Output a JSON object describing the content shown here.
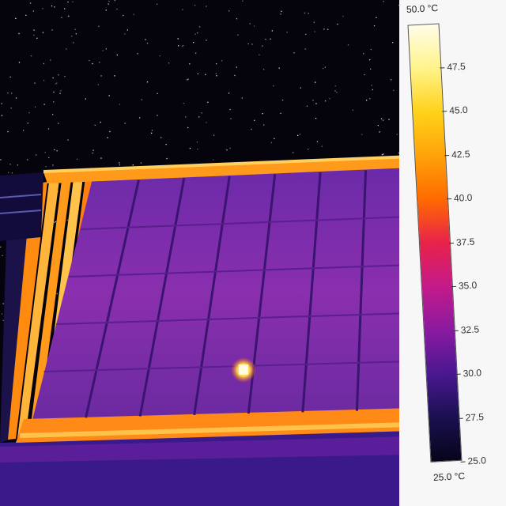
{
  "scale": {
    "max_label": "50.0 °C",
    "min_label": "25.0 °C",
    "ticks": [
      "47.5",
      "45.0",
      "42.5",
      "40.0",
      "37.5",
      "35.0",
      "32.5",
      "30.0",
      "27.5",
      "25.0"
    ],
    "gradient": [
      "#fffde8",
      "#fff38a",
      "#ffd21a",
      "#ffa20a",
      "#ff6a00",
      "#e8224a",
      "#c41a8a",
      "#8a1aa0",
      "#4a1890",
      "#1a1050",
      "#06051a"
    ]
  },
  "scene": {
    "subject": "thermal-image-solar-panel-array",
    "hotspot_color": "#fffbe0"
  }
}
